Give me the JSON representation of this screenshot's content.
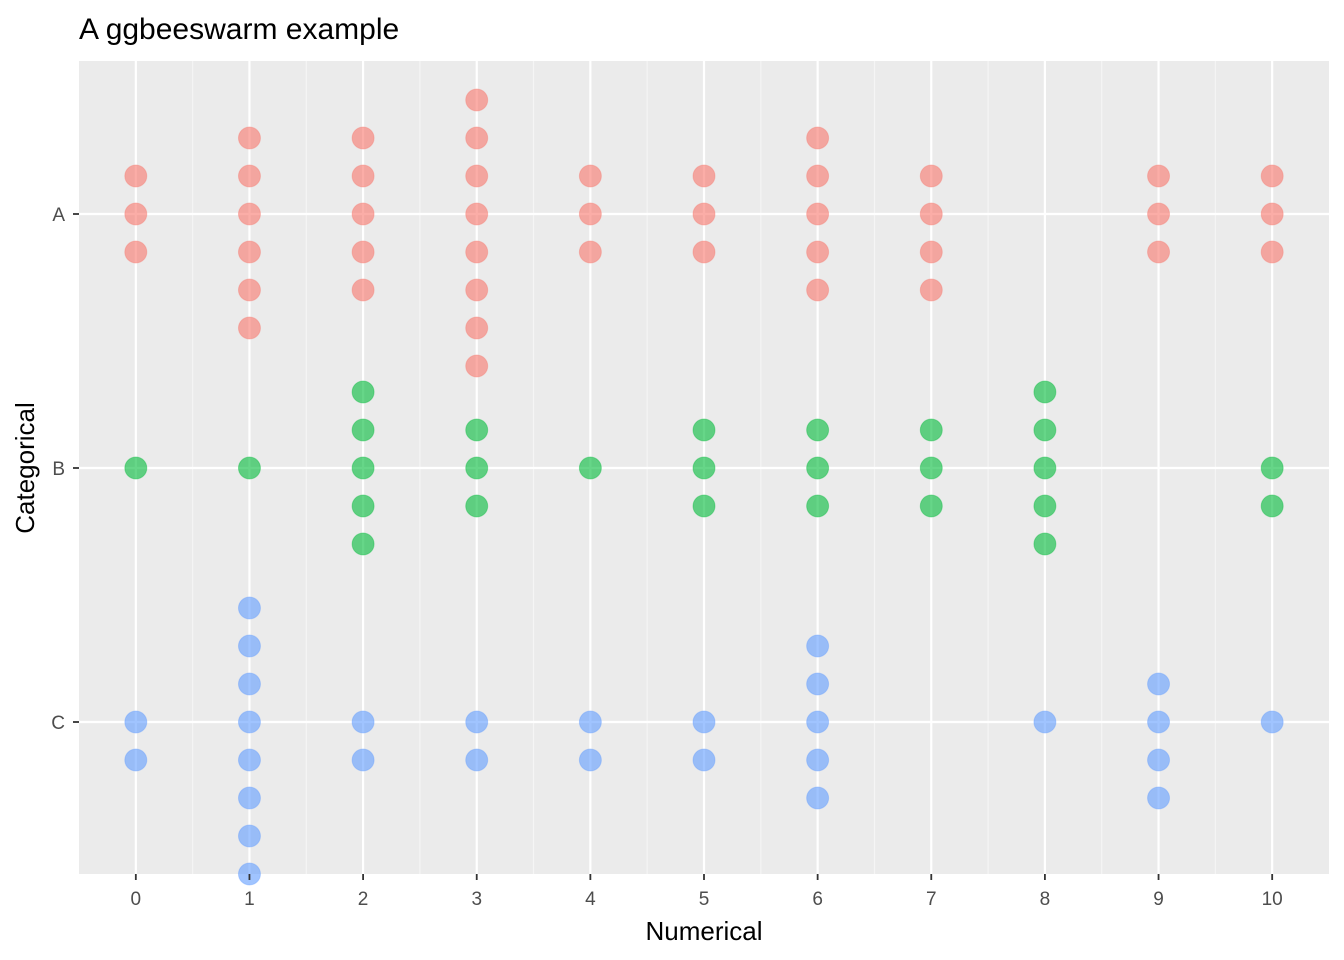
{
  "chart_data": {
    "type": "scatter",
    "subtype": "beeswarm",
    "title": "A ggbeeswarm example",
    "xlabel": "Numerical",
    "ylabel": "Categorical",
    "x_ticks": [
      0,
      1,
      2,
      3,
      4,
      5,
      6,
      7,
      8,
      9,
      10
    ],
    "x_tick_labels": [
      "0",
      "1",
      "2",
      "3",
      "4",
      "5",
      "6",
      "7",
      "8",
      "9",
      "10"
    ],
    "categories": [
      "A",
      "B",
      "C"
    ],
    "xlim": [
      -0.5,
      10.5
    ],
    "grid": true,
    "legend": "none",
    "point_alpha": 0.6,
    "series": [
      {
        "category": "A",
        "color": "#F8766D",
        "counts": [
          3,
          6,
          5,
          8,
          3,
          3,
          5,
          4,
          0,
          3,
          3
        ]
      },
      {
        "category": "B",
        "color": "#00BA38",
        "counts": [
          1,
          1,
          5,
          3,
          1,
          3,
          3,
          3,
          5,
          0,
          2
        ]
      },
      {
        "category": "C",
        "color": "#619CFF",
        "counts": [
          2,
          8,
          2,
          2,
          2,
          2,
          5,
          0,
          1,
          4,
          1
        ]
      }
    ]
  }
}
